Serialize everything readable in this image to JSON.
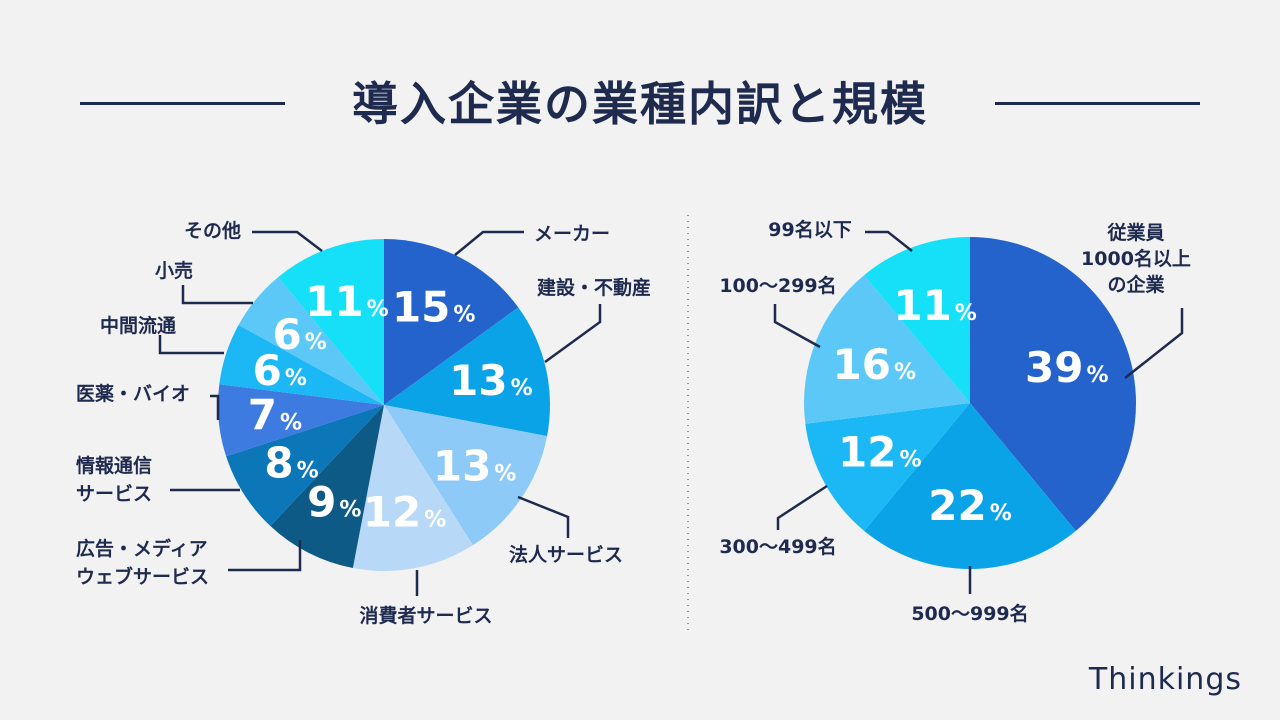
{
  "title": "導入企業の業種内訳と規模",
  "brand": "Thinkings",
  "colors": {
    "text": "#1f2a4f",
    "background": "#f2f2f2"
  },
  "chart_data": [
    {
      "type": "pie",
      "title": "業種内訳",
      "unit": "%",
      "slices": [
        {
          "label": "メーカー",
          "value": 15,
          "color": "#2563cc"
        },
        {
          "label": "建設・不動産",
          "value": 13,
          "color": "#0aa3e8"
        },
        {
          "label": "法人サービス",
          "value": 13,
          "color": "#8ecaf7"
        },
        {
          "label": "消費者サービス",
          "value": 12,
          "color": "#b7d8f7"
        },
        {
          "label": "広告・メディア\nウェブサービス",
          "value": 9,
          "color": "#0e5a86"
        },
        {
          "label": "情報通信\nサービス",
          "value": 8,
          "color": "#0b76b8"
        },
        {
          "label": "医薬・バイオ",
          "value": 7,
          "color": "#3e7be0"
        },
        {
          "label": "中間流通",
          "value": 6,
          "color": "#1cb8f5"
        },
        {
          "label": "小売",
          "value": 6,
          "color": "#5cc8f7"
        },
        {
          "label": "その他",
          "value": 11,
          "color": "#15e0f7"
        }
      ]
    },
    {
      "type": "pie",
      "title": "規模",
      "unit": "%",
      "slices": [
        {
          "label": "従業員\n1000名以上\nの企業",
          "value": 39,
          "color": "#2563cc"
        },
        {
          "label": "500〜999名",
          "value": 22,
          "color": "#0aa3e8"
        },
        {
          "label": "300〜499名",
          "value": 12,
          "color": "#1cb8f5"
        },
        {
          "label": "100〜299名",
          "value": 16,
          "color": "#5cc8f7"
        },
        {
          "label": "99名以下",
          "value": 11,
          "color": "#15e0f7"
        }
      ]
    }
  ]
}
